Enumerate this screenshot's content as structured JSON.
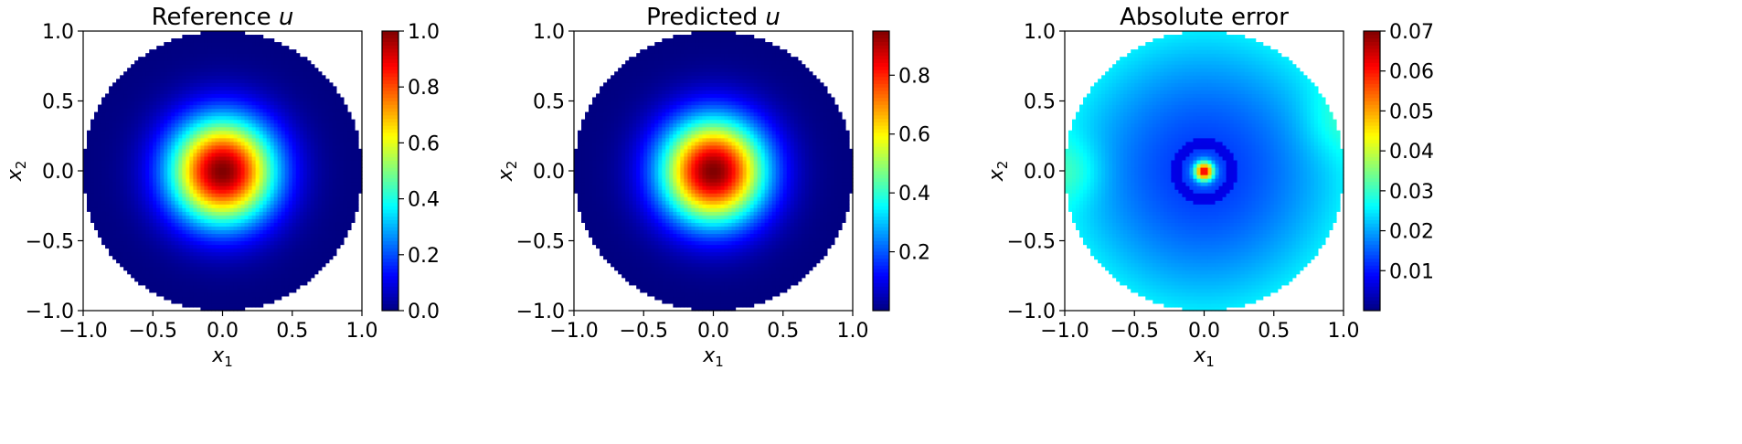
{
  "chart_data": [
    {
      "type": "heatmap",
      "title": "Reference u",
      "title_text": "Reference ",
      "title_var": "u",
      "xlabel": "x",
      "xlabel_sub": "1",
      "ylabel": "x",
      "ylabel_sub": "2",
      "xlim": [
        -1.0,
        1.0
      ],
      "ylim": [
        -1.0,
        1.0
      ],
      "xticks": [
        -1.0,
        -0.5,
        0.0,
        0.5,
        1.0
      ],
      "xtick_labels": [
        "−1.0",
        "−0.5",
        "0.0",
        "0.5",
        "1.0"
      ],
      "yticks": [
        -1.0,
        -0.5,
        0.0,
        0.5,
        1.0
      ],
      "ytick_labels": [
        "−1.0",
        "−0.5",
        "0.0",
        "0.5",
        "1.0"
      ],
      "field": "gaussian",
      "value_range": [
        0.0,
        1.0
      ],
      "colorbar": {
        "colormap": "jet",
        "range": [
          0.0,
          1.0
        ],
        "ticks": [
          0.0,
          0.2,
          0.4,
          0.6,
          0.8,
          1.0
        ],
        "tick_labels": [
          "0.0",
          "0.2",
          "0.4",
          "0.6",
          "0.8",
          "1.0"
        ]
      }
    },
    {
      "type": "heatmap",
      "title": "Predicted u",
      "title_text": "Predicted ",
      "title_var": "u",
      "xlabel": "x",
      "xlabel_sub": "1",
      "ylabel": "x",
      "ylabel_sub": "2",
      "xlim": [
        -1.0,
        1.0
      ],
      "ylim": [
        -1.0,
        1.0
      ],
      "xticks": [
        -1.0,
        -0.5,
        0.0,
        0.5,
        1.0
      ],
      "xtick_labels": [
        "−1.0",
        "−0.5",
        "0.0",
        "0.5",
        "1.0"
      ],
      "yticks": [
        -1.0,
        -0.5,
        0.0,
        0.5,
        1.0
      ],
      "ytick_labels": [
        "−1.0",
        "−0.5",
        "0.0",
        "0.5",
        "1.0"
      ],
      "field": "gaussian",
      "value_range": [
        0.0,
        0.95
      ],
      "colorbar": {
        "colormap": "jet",
        "range": [
          0.0,
          0.95
        ],
        "ticks": [
          0.2,
          0.4,
          0.6,
          0.8
        ],
        "tick_labels": [
          "0.2",
          "0.4",
          "0.6",
          "0.8"
        ]
      }
    },
    {
      "type": "heatmap",
      "title": "Absolute error",
      "title_text": "Absolute error",
      "title_var": "",
      "xlabel": "x",
      "xlabel_sub": "1",
      "ylabel": "x",
      "ylabel_sub": "2",
      "xlim": [
        -1.0,
        1.0
      ],
      "ylim": [
        -1.0,
        1.0
      ],
      "xticks": [
        -1.0,
        -0.5,
        0.0,
        0.5,
        1.0
      ],
      "xtick_labels": [
        "−1.0",
        "−0.5",
        "0.0",
        "0.5",
        "1.0"
      ],
      "yticks": [
        -1.0,
        -0.5,
        0.0,
        0.5,
        1.0
      ],
      "ytick_labels": [
        "−1.0",
        "−0.5",
        "0.0",
        "0.5",
        "1.0"
      ],
      "field": "error",
      "value_range": [
        0.0,
        0.07
      ],
      "colorbar": {
        "colormap": "jet",
        "range": [
          0.0,
          0.07
        ],
        "ticks": [
          0.01,
          0.02,
          0.03,
          0.04,
          0.05,
          0.06,
          0.07
        ],
        "tick_labels": [
          "0.01",
          "0.02",
          "0.03",
          "0.04",
          "0.05",
          "0.06",
          "0.07"
        ]
      }
    }
  ]
}
